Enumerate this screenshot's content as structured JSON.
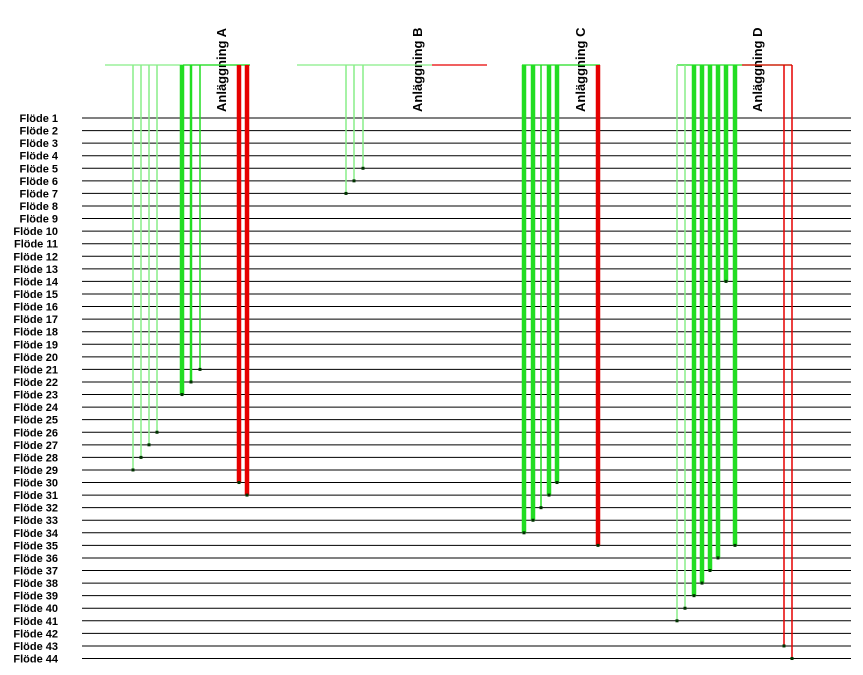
{
  "flows": [
    "Flöde 1",
    "Flöde 2",
    "Flöde 3",
    "Flöde 4",
    "Flöde 5",
    "Flöde 6",
    "Flöde 7",
    "Flöde 8",
    "Flöde 9",
    "Flöde 10",
    "Flöde 11",
    "Flöde 12",
    "Flöde 13",
    "Flöde 14",
    "Flöde 15",
    "Flöde 16",
    "Flöde 17",
    "Flöde 18",
    "Flöde 19",
    "Flöde 20",
    "Flöde 21",
    "Flöde 22",
    "Flöde 23",
    "Flöde 24",
    "Flöde 25",
    "Flöde 26",
    "Flöde 27",
    "Flöde 28",
    "Flöde 29",
    "Flöde 30",
    "Flöde 31",
    "Flöde 32",
    "Flöde 33",
    "Flöde 34",
    "Flöde 35",
    "Flöde 36",
    "Flöde 37",
    "Flöde 38",
    "Flöde 39",
    "Flöde 40",
    "Flöde 41",
    "Flöde 42",
    "Flöde 43",
    "Flöde 44"
  ],
  "colors": {
    "green": "#22dd22",
    "light_green": "#88ee88",
    "red": "#e60000",
    "flow_line": "#000000"
  },
  "plants": [
    {
      "name": "Anläggning A",
      "drops": [
        {
          "end_flow": 29,
          "weight": "thin",
          "color": "light_green"
        },
        {
          "end_flow": 28,
          "weight": "thin",
          "color": "light_green"
        },
        {
          "end_flow": 27,
          "weight": "thin",
          "color": "light_green"
        },
        {
          "end_flow": 26,
          "weight": "thin",
          "color": "light_green"
        },
        {
          "end_flow": 23,
          "weight": "thick",
          "color": "green"
        },
        {
          "end_flow": 22,
          "weight": "medium",
          "color": "green"
        },
        {
          "end_flow": 21,
          "weight": "thin",
          "color": "green"
        },
        {
          "end_flow": 30,
          "weight": "thick",
          "color": "red"
        },
        {
          "end_flow": 31,
          "weight": "thick",
          "color": "red"
        }
      ]
    },
    {
      "name": "Anläggning B",
      "drops": [
        {
          "end_flow": 7,
          "weight": "thin",
          "color": "light_green"
        },
        {
          "end_flow": 6,
          "weight": "thin",
          "color": "light_green"
        },
        {
          "end_flow": 5,
          "weight": "thin",
          "color": "light_green"
        }
      ]
    },
    {
      "name": "Anläggning C",
      "drops": [
        {
          "end_flow": 34,
          "weight": "thick",
          "color": "green"
        },
        {
          "end_flow": 33,
          "weight": "thick",
          "color": "green"
        },
        {
          "end_flow": 32,
          "weight": "thin",
          "color": "green"
        },
        {
          "end_flow": 31,
          "weight": "thick",
          "color": "green"
        },
        {
          "end_flow": 30,
          "weight": "thick",
          "color": "green"
        },
        {
          "end_flow": 35,
          "weight": "thick",
          "color": "red"
        }
      ]
    },
    {
      "name": "Anläggning D",
      "drops": [
        {
          "end_flow": 41,
          "weight": "thin",
          "color": "light_green"
        },
        {
          "end_flow": 40,
          "weight": "thin",
          "color": "light_green"
        },
        {
          "end_flow": 39,
          "weight": "thick",
          "color": "green"
        },
        {
          "end_flow": 38,
          "weight": "thick",
          "color": "green"
        },
        {
          "end_flow": 37,
          "weight": "thick",
          "color": "green"
        },
        {
          "end_flow": 36,
          "weight": "thick",
          "color": "green"
        },
        {
          "end_flow": 14,
          "weight": "thick",
          "color": "green"
        },
        {
          "end_flow": 35,
          "weight": "thick",
          "color": "green"
        },
        {
          "end_flow": 43,
          "weight": "thin",
          "color": "red"
        },
        {
          "end_flow": 44,
          "weight": "thin",
          "color": "red"
        }
      ]
    }
  ]
}
